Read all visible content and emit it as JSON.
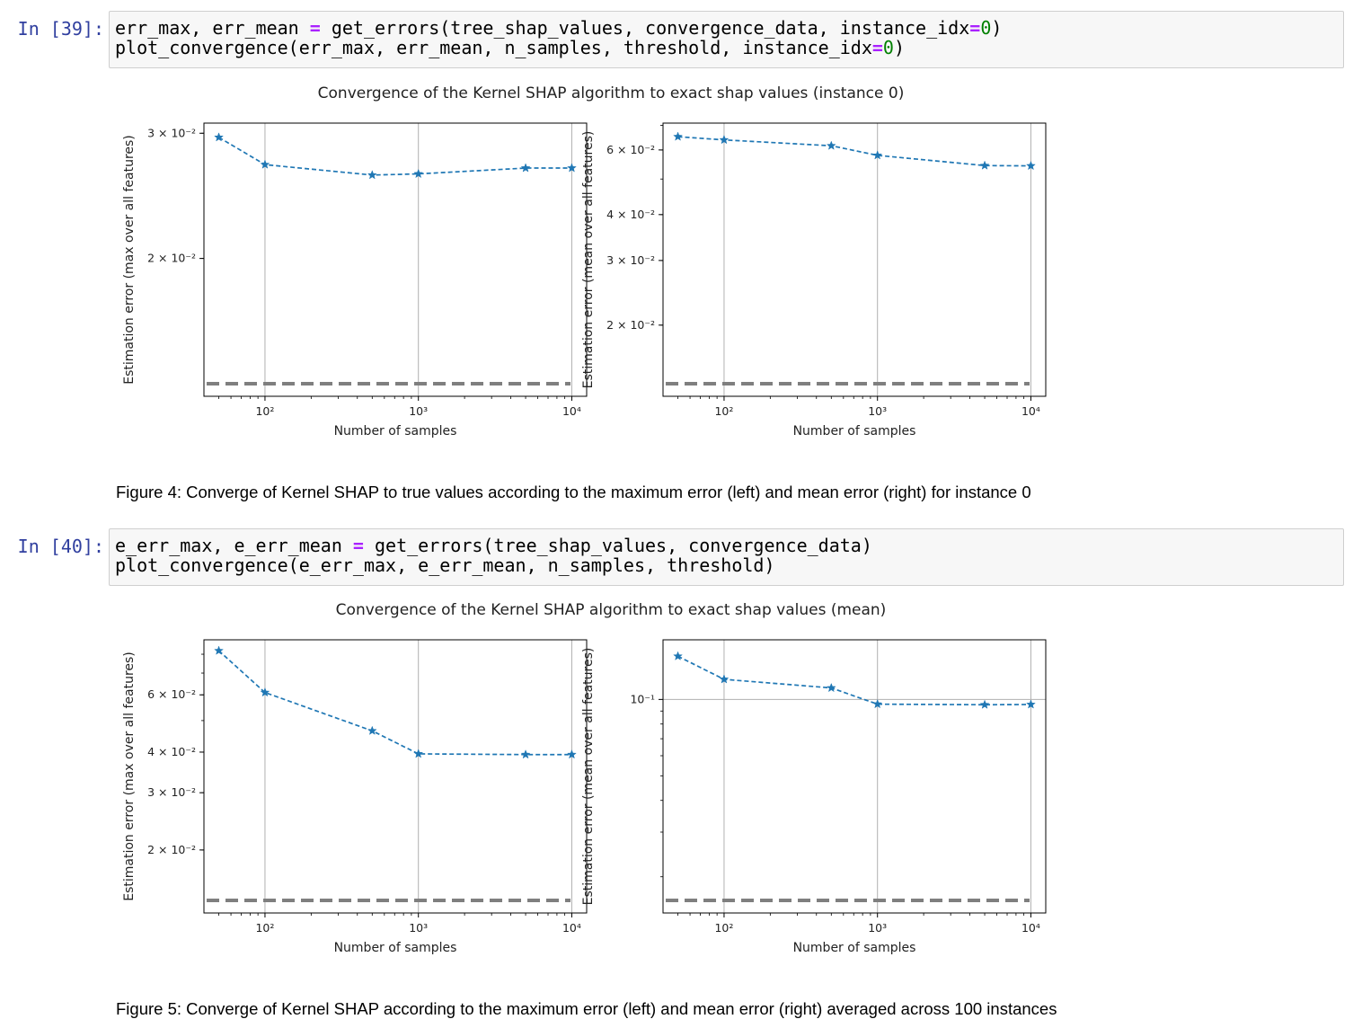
{
  "cells": [
    {
      "prompt": "In [39]:",
      "code_lines": [
        [
          [
            "err_max, err_mean ",
            ""
          ],
          [
            "=",
            "op"
          ],
          [
            " get_errors(tree_shap_values, convergence_data, instance_idx",
            ""
          ],
          [
            "=",
            "op"
          ],
          [
            "0",
            "num"
          ],
          [
            ")",
            ""
          ]
        ],
        [
          [
            "plot_convergence(err_max, err_mean, n_samples, threshold, instance_idx",
            ""
          ],
          [
            "=",
            "op"
          ],
          [
            "0",
            "num"
          ],
          [
            ")",
            ""
          ]
        ]
      ],
      "figure": {
        "title": "Convergence of the Kernel SHAP algorithm to exact shap values (instance 0)",
        "caption": "Figure 4: Converge of Kernel SHAP to true values according to the maximum error (left) and mean error (right) for instance 0"
      }
    },
    {
      "prompt": "In [40]:",
      "code_lines": [
        [
          [
            "e_err_max, e_err_mean ",
            ""
          ],
          [
            "=",
            "op"
          ],
          [
            " get_errors(tree_shap_values, convergence_data)",
            ""
          ]
        ],
        [
          [
            "plot_convergence(e_err_max, e_err_mean, n_samples, threshold)",
            ""
          ]
        ]
      ],
      "figure": {
        "title": "Convergence of the Kernel SHAP algorithm to exact shap values (mean)",
        "caption": "Figure 5: Converge of Kernel SHAP according to the maximum error (left) and mean error (right) averaged across 100 instances"
      }
    }
  ],
  "colors": {
    "series": "#1f77b4",
    "threshold": "#7f7f7f",
    "prompt": "#303f9f",
    "operator": "#aa22ff",
    "number": "#008000"
  },
  "chart_data": [
    {
      "type": "line",
      "scale": "log-log",
      "marker": "star",
      "linestyle": "dashed",
      "x": [
        50,
        100,
        500,
        1000,
        5000,
        10000
      ],
      "y": [
        0.0296,
        0.0271,
        0.0262,
        0.0263,
        0.0268,
        0.0268
      ],
      "threshold": 0.01,
      "xlabel": "Number of samples",
      "ylabel": "Estimation error (max over all features)",
      "xlim": [
        40,
        12500
      ],
      "ylim": [
        0.0128,
        0.031
      ],
      "xticks": [
        {
          "v": 100,
          "label": "10²"
        },
        {
          "v": 1000,
          "label": "10³"
        },
        {
          "v": 10000,
          "label": "10⁴"
        }
      ],
      "yticks": [
        {
          "v": 0.02,
          "label": "2 × 10⁻²"
        },
        {
          "v": 0.03,
          "label": "3 × 10⁻²"
        }
      ],
      "grid": "x-major"
    },
    {
      "type": "line",
      "scale": "log-log",
      "marker": "star",
      "linestyle": "dashed",
      "x": [
        50,
        100,
        500,
        1000,
        5000,
        10000
      ],
      "y": [
        0.0652,
        0.0639,
        0.0616,
        0.058,
        0.0544,
        0.0543
      ],
      "threshold": 0.01,
      "xlabel": "Number of samples",
      "ylabel": "Estimation error (mean over all features)",
      "xlim": [
        40,
        12500
      ],
      "ylim": [
        0.0128,
        0.071
      ],
      "xticks": [
        {
          "v": 100,
          "label": "10²"
        },
        {
          "v": 1000,
          "label": "10³"
        },
        {
          "v": 10000,
          "label": "10⁴"
        }
      ],
      "yticks": [
        {
          "v": 0.02,
          "label": "2 × 10⁻²"
        },
        {
          "v": 0.03,
          "label": "3 × 10⁻²"
        },
        {
          "v": 0.04,
          "label": "4 × 10⁻²"
        },
        {
          "v": 0.06,
          "label": "6 × 10⁻²"
        }
      ],
      "grid": "x-major"
    },
    {
      "type": "line",
      "scale": "log-log",
      "marker": "star",
      "linestyle": "dashed",
      "x": [
        50,
        100,
        500,
        1000,
        5000,
        10000
      ],
      "y": [
        0.082,
        0.061,
        0.0465,
        0.0395,
        0.0393,
        0.0393
      ],
      "threshold": 0.01,
      "xlabel": "Number of samples",
      "ylabel": "Estimation error (max over all features)",
      "xlim": [
        40,
        12500
      ],
      "ylim": [
        0.0128,
        0.0886
      ],
      "xticks": [
        {
          "v": 100,
          "label": "10²"
        },
        {
          "v": 1000,
          "label": "10³"
        },
        {
          "v": 10000,
          "label": "10⁴"
        }
      ],
      "yticks": [
        {
          "v": 0.02,
          "label": "2 × 10⁻²"
        },
        {
          "v": 0.03,
          "label": "3 × 10⁻²"
        },
        {
          "v": 0.04,
          "label": "4 × 10⁻²"
        },
        {
          "v": 0.06,
          "label": "6 × 10⁻²"
        }
      ],
      "grid": "x-major"
    },
    {
      "type": "line",
      "scale": "log-log",
      "marker": "star",
      "linestyle": "dashed",
      "x": [
        50,
        100,
        500,
        1000,
        5000,
        10000
      ],
      "y": [
        0.148,
        0.12,
        0.111,
        0.0958,
        0.0953,
        0.0955
      ],
      "threshold": 0.01,
      "xlabel": "Number of samples",
      "ylabel": "Estimation error (mean over all features)",
      "xlim": [
        40,
        12500
      ],
      "ylim": [
        0.0144,
        0.1718
      ],
      "xticks": [
        {
          "v": 100,
          "label": "10²"
        },
        {
          "v": 1000,
          "label": "10³"
        },
        {
          "v": 10000,
          "label": "10⁴"
        }
      ],
      "yticks": [
        {
          "v": 0.1,
          "label": "10⁻¹"
        }
      ],
      "grid": "both-major"
    }
  ]
}
